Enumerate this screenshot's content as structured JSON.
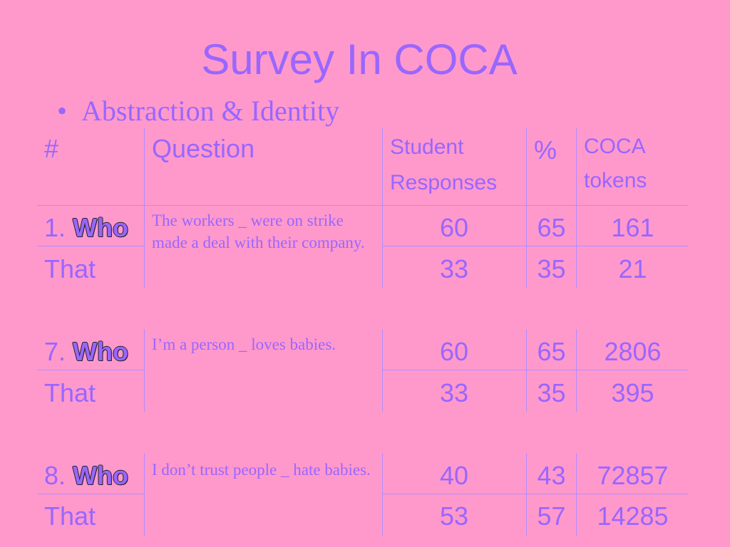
{
  "slide": {
    "title": "Survey In COCA",
    "bullet": "Abstraction & Identity"
  },
  "table": {
    "headers": {
      "num": "#",
      "question": "Question",
      "student_line1": "Student",
      "student_line2": "Responses",
      "percent": "%",
      "coca_line1": "COCA",
      "coca_line2": "tokens"
    },
    "groups": [
      {
        "number": "1.",
        "question": "The workers _ were on strike made a deal with their company.",
        "rows": [
          {
            "label": "Who",
            "responses": "60",
            "percent": "65",
            "tokens": "161"
          },
          {
            "label": "That",
            "responses": "33",
            "percent": "35",
            "tokens": "21"
          }
        ]
      },
      {
        "number": "7.",
        "question": "I’m a person _ loves babies.",
        "rows": [
          {
            "label": "Who",
            "responses": "60",
            "percent": "65",
            "tokens": "2806"
          },
          {
            "label": "That",
            "responses": "33",
            "percent": "35",
            "tokens": "395"
          }
        ]
      },
      {
        "number": "8.",
        "question": "I don’t trust people _ hate babies.",
        "rows": [
          {
            "label": "Who",
            "responses": "40",
            "percent": "43",
            "tokens": "72857"
          },
          {
            "label": "That",
            "responses": "53",
            "percent": "57",
            "tokens": "14285"
          }
        ]
      }
    ]
  }
}
